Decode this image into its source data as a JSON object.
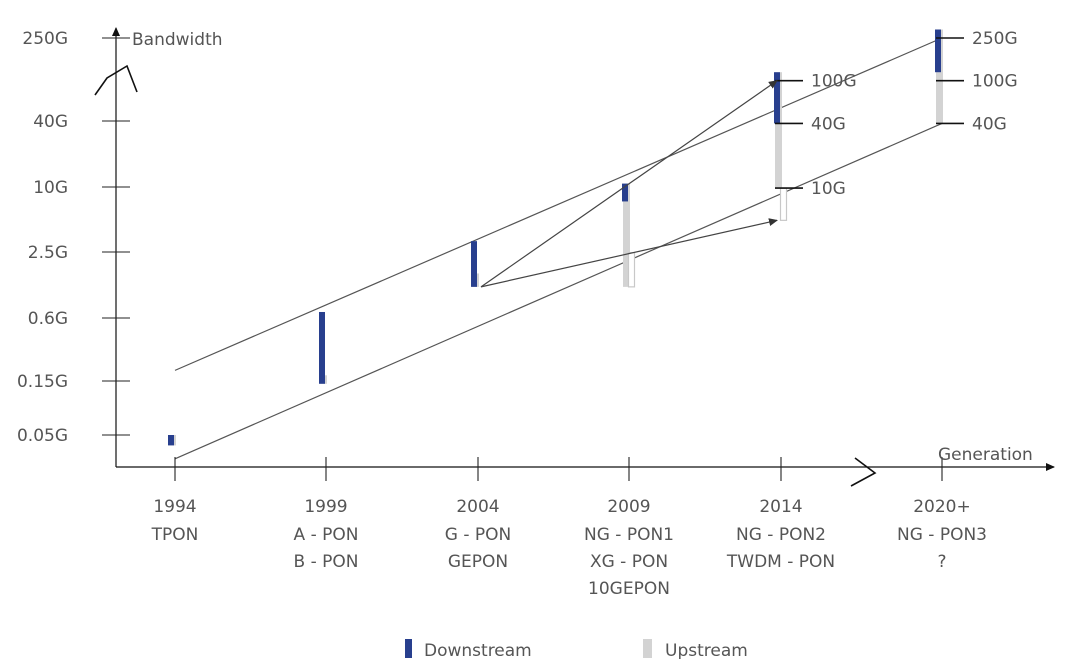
{
  "chart_data": {
    "type": "bar",
    "title": "",
    "xlabel": "Generation",
    "ylabel": "Bandwidth",
    "y_scale": "log",
    "y_ticks": [
      "250G",
      "40G",
      "10G",
      "2.5G",
      "0.6G",
      "0.15G",
      "0.05G"
    ],
    "y_tick_values_gbps": [
      250,
      40,
      10,
      2.5,
      0.6,
      0.15,
      0.05
    ],
    "categories": [
      {
        "year": "1994",
        "techs": [
          "TPON"
        ]
      },
      {
        "year": "1999",
        "techs": [
          "A - PON",
          "B - PON"
        ]
      },
      {
        "year": "2004",
        "techs": [
          "G - PON",
          "GEPON"
        ]
      },
      {
        "year": "2009",
        "techs": [
          "NG - PON1",
          "XG - PON",
          "10GEPON"
        ]
      },
      {
        "year": "2014",
        "techs": [
          "NG - PON2",
          "TWDM - PON"
        ]
      },
      {
        "year": "2020+",
        "techs": [
          "NG - PON3",
          "?"
        ]
      }
    ],
    "series": [
      {
        "name": "Downstream",
        "color": "#283f8e",
        "ranges_gbps": [
          [
            0.04,
            0.05
          ],
          [
            0.15,
            0.7
          ],
          [
            1.2,
            3.2
          ],
          [
            7.5,
            11
          ],
          [
            40,
            120
          ],
          [
            120,
            300
          ]
        ]
      },
      {
        "name": "Upstream",
        "color": "#d3d3d3",
        "ranges_gbps": [
          [
            0.04,
            0.05
          ],
          [
            0.15,
            0.18
          ],
          [
            1.2,
            1.6
          ],
          [
            1.2,
            11
          ],
          [
            10,
            120
          ],
          [
            40,
            300
          ]
        ]
      }
    ],
    "upstream_outline_ranges_gbps": [
      {
        "index": 3,
        "range": [
          1.2,
          2.5
        ]
      },
      {
        "index": 4,
        "range": [
          5,
          10
        ]
      }
    ],
    "end_markers": [
      {
        "index": 4,
        "labels": [
          "100G",
          "40G",
          "10G"
        ],
        "values": [
          100,
          40,
          10
        ]
      },
      {
        "index": 5,
        "labels": [
          "250G",
          "100G",
          "40G"
        ],
        "values": [
          250,
          100,
          40
        ]
      }
    ],
    "trend_lines": [
      {
        "from": [
          0,
          0.2
        ],
        "to": [
          5,
          250
        ]
      },
      {
        "from": [
          0,
          0.03
        ],
        "to": [
          5,
          40
        ]
      }
    ],
    "arrows": [
      {
        "from": [
          2,
          1.2
        ],
        "to": [
          4,
          100
        ]
      },
      {
        "from": [
          2,
          1.2
        ],
        "to": [
          4,
          5
        ]
      }
    ],
    "legend_position": "bottom",
    "grid": false
  },
  "colors": {
    "downstream": "#283f8e",
    "upstream": "#d3d3d3",
    "axis": "#444444",
    "trend": "#555555",
    "text": "#555555"
  }
}
